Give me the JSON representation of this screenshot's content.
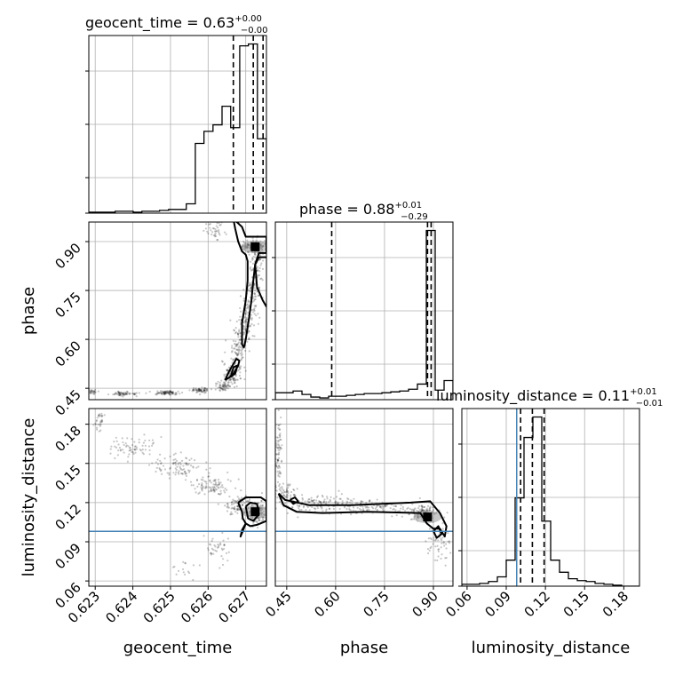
{
  "chart_data": {
    "type": "corner",
    "parameters": [
      "geocent_time",
      "phase",
      "luminosity_distance"
    ],
    "axis_labels": {
      "geocent_time": "geocent_time",
      "phase": "phase",
      "luminosity_distance": "luminosity_distance"
    },
    "ranges": {
      "geocent_time": [
        0.62283,
        0.62755
      ],
      "phase": [
        0.415,
        0.96
      ],
      "luminosity_distance": [
        0.056,
        0.192
      ]
    },
    "ticks": {
      "geocent_time": [
        "0.623",
        "0.624",
        "0.625",
        "0.626",
        "0.627"
      ],
      "phase": [
        "0.45",
        "0.60",
        "0.75",
        "0.90"
      ],
      "luminosity_distance": [
        "0.06",
        "0.09",
        "0.12",
        "0.15",
        "0.18"
      ]
    },
    "titles": [
      {
        "param": "geocent_time",
        "text": "geocent_time = 0.63",
        "plus": "+0.00",
        "minus": "−0.00"
      },
      {
        "param": "phase",
        "text": "phase = 0.88",
        "plus": "+0.01",
        "minus": "−0.29"
      },
      {
        "param": "luminosity_distance",
        "text": "luminosity_distance = 0.11",
        "plus": "+0.01",
        "minus": "−0.01"
      }
    ],
    "quantiles": {
      "geocent_time": [
        0.62667,
        0.6272,
        0.62746
      ],
      "phase": [
        0.588,
        0.882,
        0.893
      ],
      "luminosity_distance": [
        0.101,
        0.11,
        0.119
      ]
    },
    "injection": {
      "luminosity_distance": 0.098
    },
    "histograms": {
      "geocent_time": {
        "edges": [
          0.62283,
          0.62306,
          0.6233,
          0.62353,
          0.62377,
          0.62401,
          0.62424,
          0.62448,
          0.62471,
          0.62495,
          0.62519,
          0.62542,
          0.62566,
          0.62589,
          0.62613,
          0.62637,
          0.6266,
          0.62684,
          0.62707,
          0.62731,
          0.62755
        ],
        "counts": [
          1,
          1,
          1,
          2,
          2,
          1,
          2,
          2,
          3,
          4,
          4,
          10,
          75,
          88,
          95,
          115,
          92,
          180,
          182,
          80
        ]
      },
      "phase": {
        "edges": [
          0.415,
          0.4423,
          0.4695,
          0.4968,
          0.524,
          0.5513,
          0.5785,
          0.6058,
          0.633,
          0.6603,
          0.6875,
          0.7148,
          0.742,
          0.7693,
          0.7965,
          0.8238,
          0.851,
          0.8783,
          0.9055,
          0.9328,
          0.96
        ],
        "counts": [
          8,
          8,
          10,
          6,
          3,
          2,
          4,
          4,
          5,
          6,
          7,
          7,
          8,
          9,
          10,
          12,
          18,
          195,
          11,
          22
        ]
      },
      "luminosity_distance": {
        "edges": [
          0.056,
          0.0628,
          0.0696,
          0.0764,
          0.0832,
          0.09,
          0.0968,
          0.1036,
          0.1104,
          0.1172,
          0.124,
          0.1308,
          0.1376,
          0.1444,
          0.1512,
          0.158,
          0.1648,
          0.1716,
          0.1784,
          0.1852,
          0.192
        ],
        "counts": [
          2,
          2,
          3,
          5,
          10,
          28,
          95,
          160,
          182,
          70,
          28,
          15,
          8,
          6,
          5,
          3,
          2,
          1,
          0,
          0
        ]
      }
    },
    "scatter_tracks": {
      "phase|geocent_time": [
        {
          "x": 0.6229,
          "y": 0.44,
          "sx": 8e-05,
          "sy": 0.004,
          "n": 30
        },
        {
          "x": 0.6238,
          "y": 0.433,
          "sx": 0.0002,
          "sy": 0.003,
          "n": 60
        },
        {
          "x": 0.6249,
          "y": 0.436,
          "sx": 0.0002,
          "sy": 0.003,
          "n": 80
        },
        {
          "x": 0.6258,
          "y": 0.444,
          "sx": 0.00012,
          "sy": 0.004,
          "n": 60
        },
        {
          "x": 0.6264,
          "y": 0.455,
          "sx": 8e-05,
          "sy": 0.008,
          "n": 50
        },
        {
          "x": 0.6266,
          "y": 0.49,
          "sx": 0.0001,
          "sy": 0.02,
          "n": 80
        },
        {
          "x": 0.6268,
          "y": 0.56,
          "sx": 0.0001,
          "sy": 0.04,
          "n": 100
        },
        {
          "x": 0.627,
          "y": 0.65,
          "sx": 0.0001,
          "sy": 0.04,
          "n": 100
        },
        {
          "x": 0.6272,
          "y": 0.75,
          "sx": 0.0001,
          "sy": 0.04,
          "n": 100
        },
        {
          "x": 0.6273,
          "y": 0.855,
          "sx": 8e-05,
          "sy": 0.03,
          "n": 80
        },
        {
          "x": 0.6272,
          "y": 0.884,
          "sx": 0.0002,
          "sy": 0.008,
          "n": 160
        },
        {
          "x": 0.6262,
          "y": 0.935,
          "sx": 0.00015,
          "sy": 0.015,
          "n": 40
        }
      ],
      "luminosity_distance|geocent_time": [
        {
          "x": 0.6231,
          "y": 0.183,
          "sx": 8e-05,
          "sy": 0.005,
          "n": 30
        },
        {
          "x": 0.624,
          "y": 0.162,
          "sx": 0.0003,
          "sy": 0.004,
          "n": 70
        },
        {
          "x": 0.6252,
          "y": 0.148,
          "sx": 0.0003,
          "sy": 0.004,
          "n": 90
        },
        {
          "x": 0.6261,
          "y": 0.133,
          "sx": 0.0003,
          "sy": 0.004,
          "n": 90
        },
        {
          "x": 0.6268,
          "y": 0.118,
          "sx": 0.0002,
          "sy": 0.004,
          "n": 90
        },
        {
          "x": 0.6273,
          "y": 0.112,
          "sx": 0.00015,
          "sy": 0.004,
          "n": 140
        },
        {
          "x": 0.6262,
          "y": 0.085,
          "sx": 0.00018,
          "sy": 0.006,
          "n": 40
        },
        {
          "x": 0.6254,
          "y": 0.068,
          "sx": 0.00015,
          "sy": 0.004,
          "n": 15
        }
      ],
      "luminosity_distance|phase": [
        {
          "x": 0.425,
          "y": 0.16,
          "sx": 0.006,
          "sy": 0.015,
          "n": 80
        },
        {
          "x": 0.445,
          "y": 0.127,
          "sx": 0.015,
          "sy": 0.004,
          "n": 60
        },
        {
          "x": 0.54,
          "y": 0.119,
          "sx": 0.05,
          "sy": 0.003,
          "n": 120
        },
        {
          "x": 0.7,
          "y": 0.117,
          "sx": 0.08,
          "sy": 0.003,
          "n": 140
        },
        {
          "x": 0.87,
          "y": 0.112,
          "sx": 0.02,
          "sy": 0.003,
          "n": 140
        },
        {
          "x": 0.92,
          "y": 0.09,
          "sx": 0.02,
          "sy": 0.008,
          "n": 60
        }
      ]
    },
    "contours": {
      "phase|geocent_time": [
        [
          [
            0.62667,
            0.97
          ],
          [
            0.6269,
            0.945
          ],
          [
            0.627,
            0.915
          ],
          [
            0.62755,
            0.915
          ],
          [
            0.62755,
            0.865
          ],
          [
            0.62735,
            0.865
          ],
          [
            0.62725,
            0.83
          ],
          [
            0.6272,
            0.78
          ],
          [
            0.62715,
            0.72
          ],
          [
            0.62708,
            0.66
          ],
          [
            0.627,
            0.6
          ],
          [
            0.62695,
            0.575
          ],
          [
            0.6269,
            0.585
          ],
          [
            0.6269,
            0.65
          ],
          [
            0.627,
            0.72
          ],
          [
            0.62705,
            0.78
          ],
          [
            0.62705,
            0.84
          ],
          [
            0.627,
            0.86
          ],
          [
            0.6269,
            0.87
          ],
          [
            0.6268,
            0.9
          ],
          [
            0.62672,
            0.94
          ],
          [
            0.62667,
            0.97
          ]
        ],
        [
          [
            0.62755,
            0.852
          ],
          [
            0.62735,
            0.852
          ],
          [
            0.62725,
            0.83
          ],
          [
            0.6273,
            0.76
          ],
          [
            0.62745,
            0.72
          ],
          [
            0.62755,
            0.7
          ]
        ],
        [
          [
            0.62645,
            0.475
          ],
          [
            0.62665,
            0.49
          ],
          [
            0.6268,
            0.52
          ],
          [
            0.62683,
            0.535
          ],
          [
            0.62675,
            0.54
          ],
          [
            0.62655,
            0.5
          ],
          [
            0.62645,
            0.475
          ]
        ],
        [
          [
            0.6266,
            0.485
          ],
          [
            0.62672,
            0.495
          ],
          [
            0.62678,
            0.52
          ],
          [
            0.62668,
            0.515
          ],
          [
            0.6266,
            0.485
          ]
        ]
      ],
      "luminosity_distance|geocent_time": [
        [
          [
            0.6268,
            0.12
          ],
          [
            0.627,
            0.124
          ],
          [
            0.6274,
            0.124
          ],
          [
            0.62755,
            0.121
          ],
          [
            0.62755,
            0.106
          ],
          [
            0.6273,
            0.103
          ],
          [
            0.62712,
            0.102
          ],
          [
            0.627,
            0.104
          ],
          [
            0.62692,
            0.108
          ],
          [
            0.6269,
            0.113
          ],
          [
            0.6268,
            0.12
          ]
        ],
        [
          [
            0.627,
            0.117
          ],
          [
            0.62712,
            0.12
          ],
          [
            0.6273,
            0.119
          ],
          [
            0.62735,
            0.111
          ],
          [
            0.6272,
            0.106
          ],
          [
            0.62706,
            0.108
          ],
          [
            0.627,
            0.117
          ]
        ],
        [
          [
            0.627,
            0.104
          ],
          [
            0.6269,
            0.099
          ],
          [
            0.62686,
            0.094
          ],
          [
            0.62692,
            0.098
          ],
          [
            0.627,
            0.104
          ]
        ]
      ],
      "luminosity_distance|phase": [
        [
          [
            0.425,
            0.127
          ],
          [
            0.445,
            0.122
          ],
          [
            0.52,
            0.118
          ],
          [
            0.65,
            0.118
          ],
          [
            0.83,
            0.12
          ],
          [
            0.89,
            0.121
          ],
          [
            0.92,
            0.112
          ],
          [
            0.94,
            0.102
          ],
          [
            0.935,
            0.094
          ],
          [
            0.92,
            0.1
          ],
          [
            0.9,
            0.1
          ],
          [
            0.88,
            0.104
          ],
          [
            0.86,
            0.112
          ],
          [
            0.7,
            0.113
          ],
          [
            0.56,
            0.112
          ],
          [
            0.48,
            0.113
          ],
          [
            0.44,
            0.118
          ],
          [
            0.425,
            0.127
          ]
        ],
        [
          [
            0.46,
            0.122
          ],
          [
            0.475,
            0.124
          ],
          [
            0.485,
            0.121
          ],
          [
            0.47,
            0.119
          ],
          [
            0.46,
            0.122
          ]
        ],
        [
          [
            0.9,
            0.098
          ],
          [
            0.915,
            0.102
          ],
          [
            0.925,
            0.096
          ],
          [
            0.91,
            0.093
          ],
          [
            0.9,
            0.098
          ]
        ]
      ]
    },
    "peak_markers": [
      {
        "panel": "phase|geocent_time",
        "x": 0.62725,
        "y": 0.884
      },
      {
        "panel": "luminosity_distance|geocent_time",
        "x": 0.62725,
        "y": 0.113
      },
      {
        "panel": "luminosity_distance|phase",
        "x": 0.882,
        "y": 0.109
      }
    ],
    "colors": {
      "line": "#000000",
      "injection": "#4682b4",
      "grid": "#b0b0b0",
      "points": "#000000"
    },
    "grid": true
  }
}
